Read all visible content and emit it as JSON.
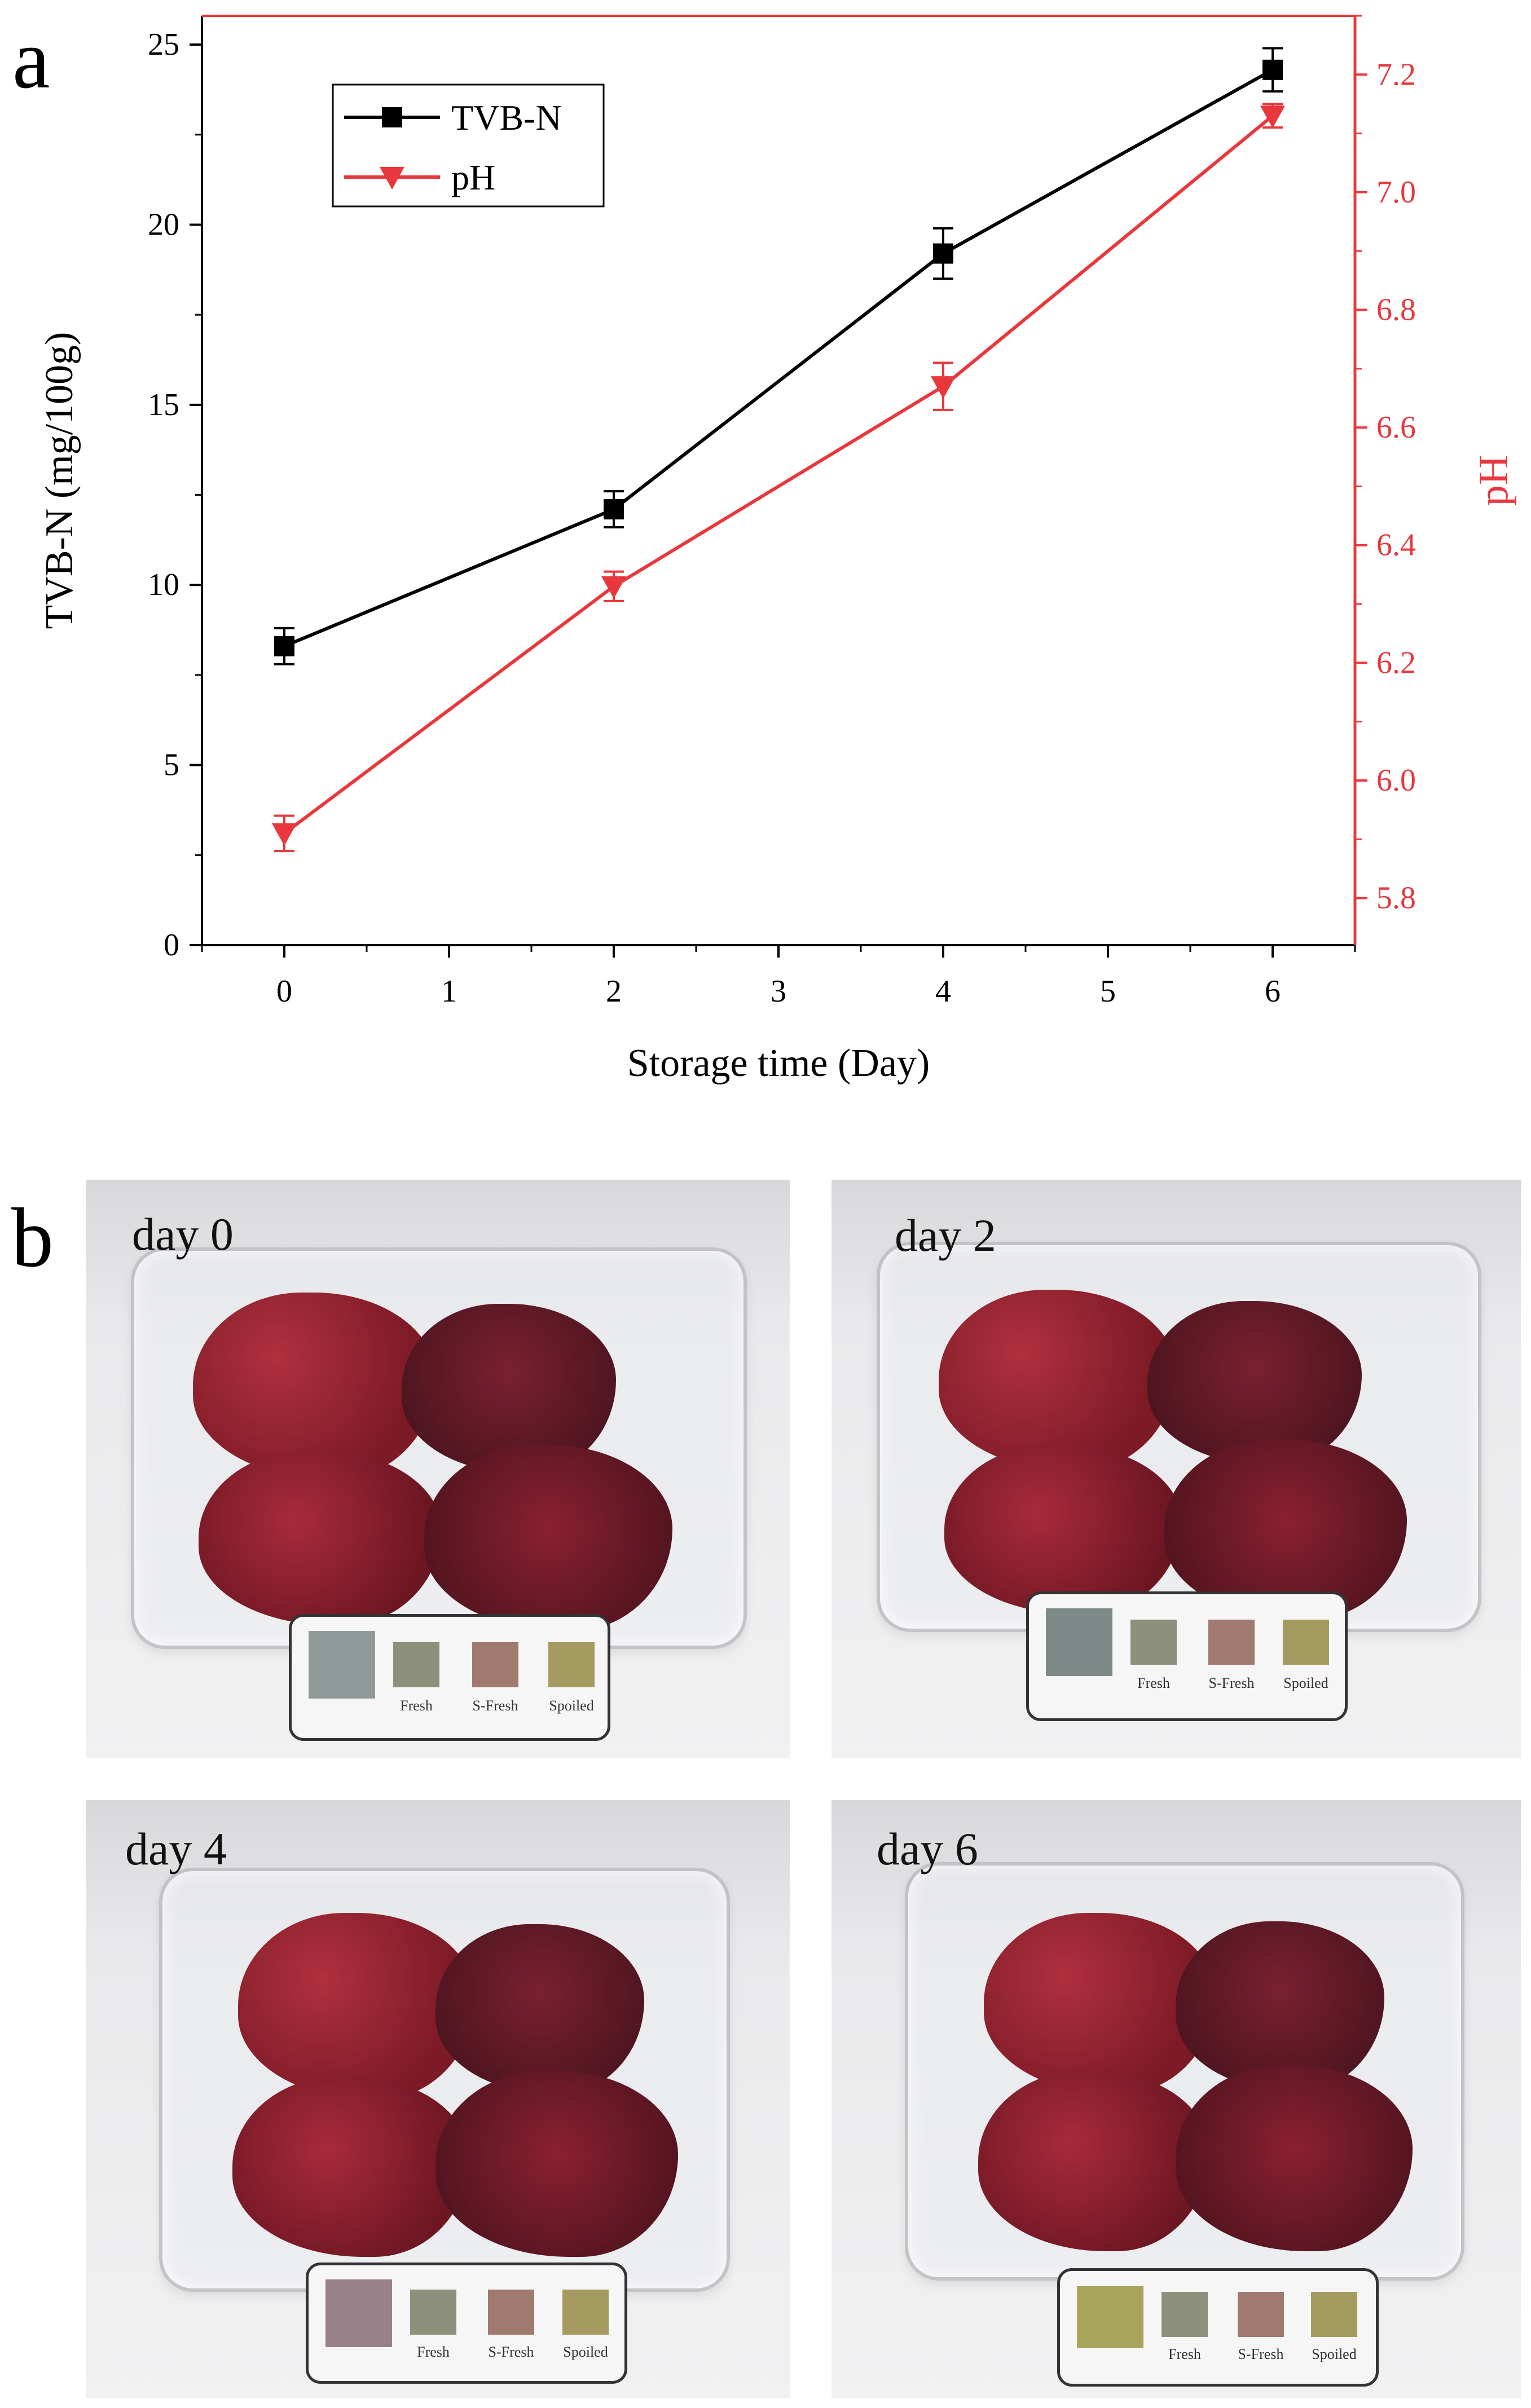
{
  "panel_a_label": "a",
  "panel_b_label": "b",
  "chart_data": {
    "type": "line",
    "title": "",
    "xlabel": "Storage time (Day)",
    "ylabel": "TVB-N (mg/100g)",
    "y2label": "pH",
    "xlim": [
      -0.5,
      6.5
    ],
    "ylim": [
      0,
      25.8
    ],
    "y2lim": [
      5.72,
      7.3
    ],
    "xticks": [
      "0",
      "1",
      "2",
      "3",
      "4",
      "5",
      "6"
    ],
    "yticks": [
      "0",
      "5",
      "10",
      "15",
      "20",
      "25"
    ],
    "y2ticks": [
      "5.8",
      "6.0",
      "6.2",
      "6.4",
      "6.6",
      "6.8",
      "7.0",
      "7.2"
    ],
    "legend_position": "top-left",
    "series": [
      {
        "name": "TVB-N",
        "axis": "left",
        "marker": "square",
        "color": "#000000",
        "x": [
          0,
          2,
          4,
          6
        ],
        "values": [
          8.3,
          12.1,
          19.2,
          24.3
        ],
        "errors": [
          0.5,
          0.5,
          0.7,
          0.6
        ]
      },
      {
        "name": "pH",
        "axis": "right",
        "marker": "triangle-down",
        "color": "#e8383d",
        "x": [
          0,
          2,
          4,
          6
        ],
        "values": [
          5.91,
          6.33,
          6.67,
          7.13
        ],
        "errors": [
          0.03,
          0.025,
          0.04,
          0.02
        ]
      }
    ]
  },
  "photos": [
    {
      "day_label": "day 0",
      "swatch_colors": [
        "#8e9a98",
        "#8d907a",
        "#a07a6e",
        "#a59a60"
      ],
      "swatch_labels": [
        "Fresh",
        "S-Fresh",
        "Spoiled"
      ]
    },
    {
      "day_label": "day 2",
      "swatch_colors": [
        "#7d8a88",
        "#8d907a",
        "#a07a6e",
        "#a59a60"
      ],
      "swatch_labels": [
        "Fresh",
        "S-Fresh",
        "Spoiled"
      ]
    },
    {
      "day_label": "day 4",
      "swatch_colors": [
        "#9a8088",
        "#8d907a",
        "#a07a6e",
        "#a59a60"
      ],
      "swatch_labels": [
        "Fresh",
        "S-Fresh",
        "Spoiled"
      ]
    },
    {
      "day_label": "day 6",
      "swatch_colors": [
        "#a8a45c",
        "#8d907a",
        "#a07a6e",
        "#a59a60"
      ],
      "swatch_labels": [
        "Fresh",
        "S-Fresh",
        "Spoiled"
      ]
    }
  ]
}
